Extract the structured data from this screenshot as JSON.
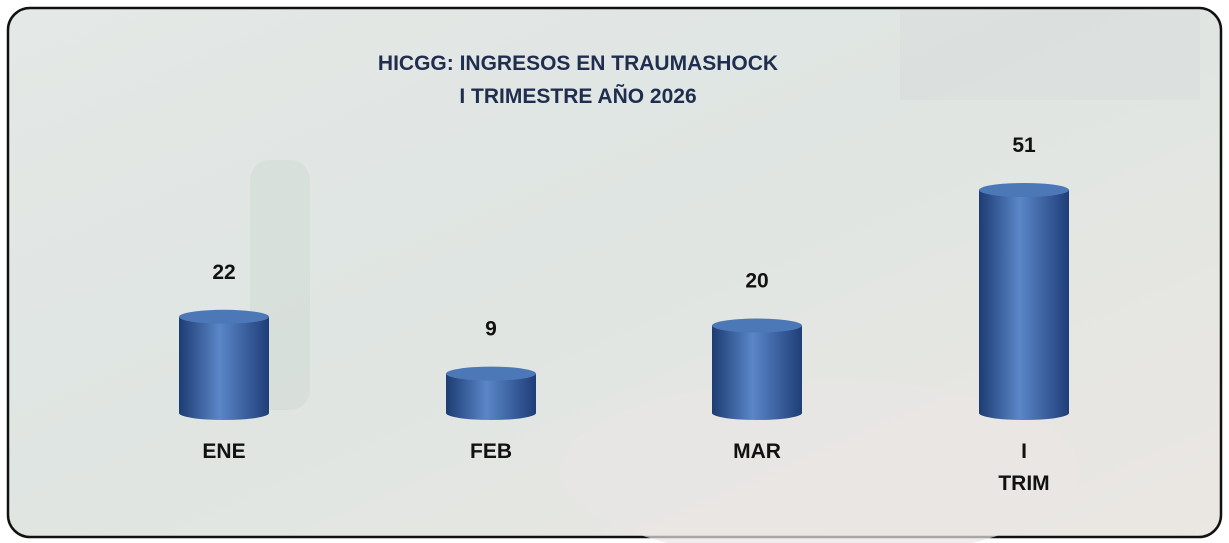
{
  "chart_data": {
    "type": "bar",
    "title": "HICGG: INGRESOS EN TRAUMASHOCK",
    "subtitle": "I TRIMESTRE AÑO 2026",
    "categories": [
      "ENE",
      "FEB",
      "MAR",
      "I TRIM"
    ],
    "values": [
      22,
      9,
      20,
      51
    ],
    "color": "#2f5597"
  }
}
